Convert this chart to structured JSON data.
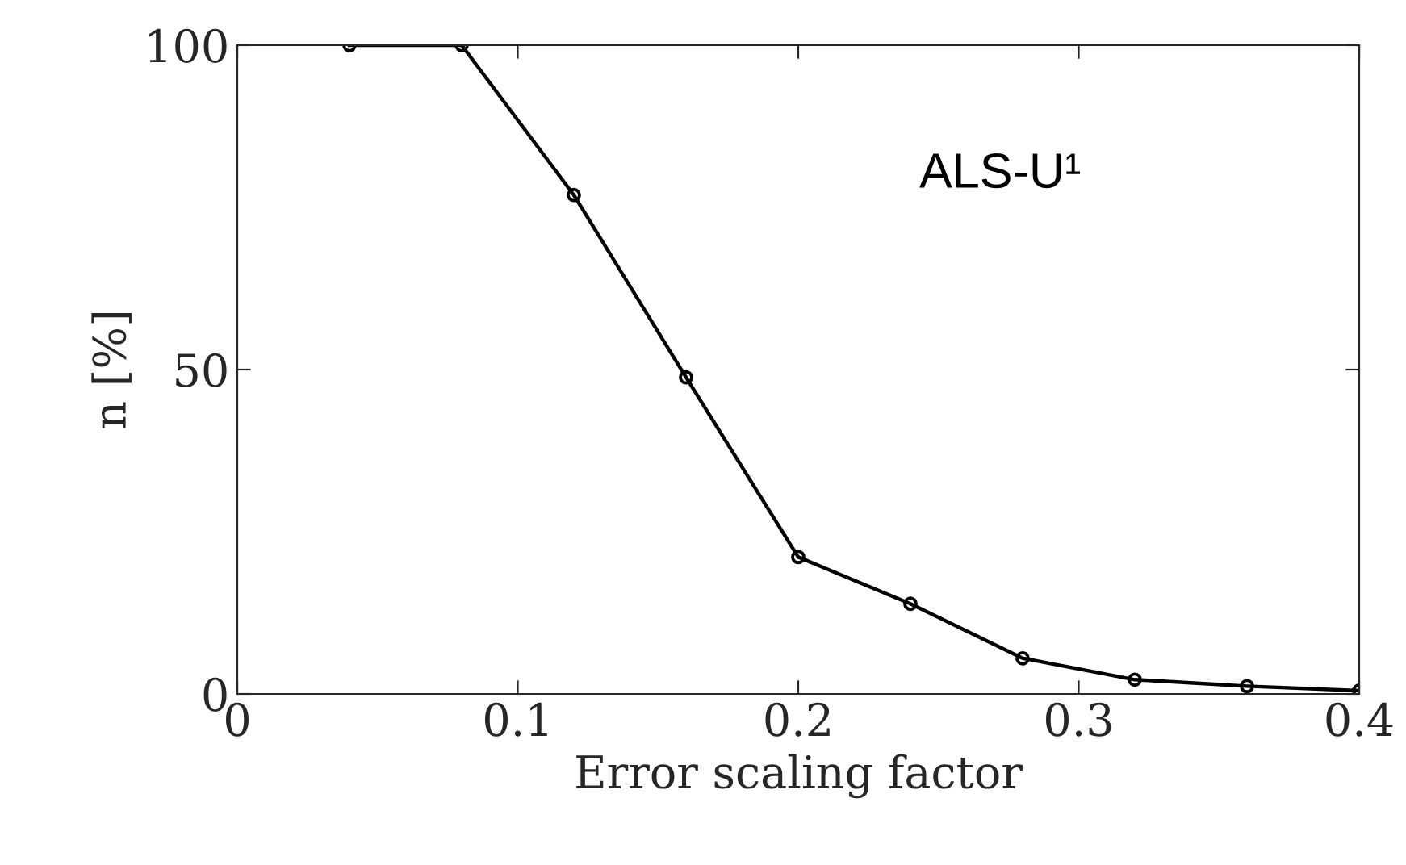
{
  "chart_data": {
    "type": "line",
    "xlabel": "Error scaling factor",
    "ylabel": "n [%]",
    "x": [
      0.04,
      0.08,
      0.12,
      0.16,
      0.2,
      0.24,
      0.28,
      0.32,
      0.36,
      0.4
    ],
    "series": [
      {
        "color": "#000000",
        "values": [
          100,
          100,
          76.9,
          48.8,
          21.1,
          13.9,
          5.5,
          2.2,
          1.2,
          0.5
        ]
      }
    ],
    "xlim": [
      0,
      0.4
    ],
    "xticks": [
      0,
      0.1,
      0.2,
      0.3,
      0.4
    ],
    "ylim": [
      0,
      100
    ],
    "yticks": [
      0,
      50,
      100
    ],
    "marker": "circle",
    "line_style": "solid",
    "grid": false,
    "legend": false,
    "annotations": [
      "ALS-U¹"
    ]
  }
}
